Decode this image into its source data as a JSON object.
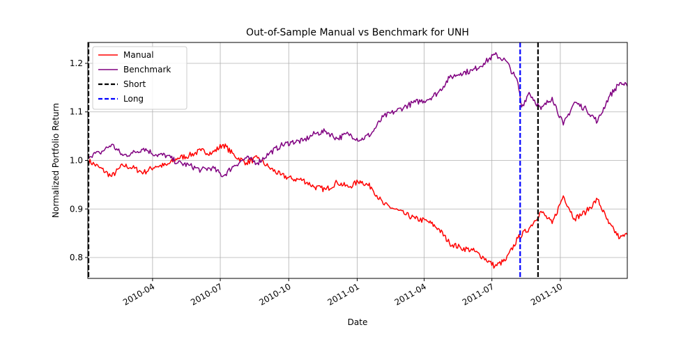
{
  "chart_data": {
    "type": "line",
    "title": "Out-of-Sample Manual vs Benchmark for UNH",
    "xlabel": "Date",
    "ylabel": "Normalized Portfolio Return",
    "x_range": [
      "2010-01-04",
      "2011-12-30"
    ],
    "ylim": [
      0.757,
      1.243
    ],
    "x_ticks": [
      "2010-04",
      "2010-07",
      "2010-10",
      "2011-01",
      "2011-04",
      "2011-07",
      "2011-10"
    ],
    "y_ticks": [
      0.8,
      0.9,
      1.0,
      1.1,
      1.2
    ],
    "grid": true,
    "legend_position": "top-left",
    "series": [
      {
        "name": "Manual",
        "color": "#ff0000",
        "points": [
          [
            "2010-01-04",
            1.0
          ],
          [
            "2010-01-20",
            0.985
          ],
          [
            "2010-02-05",
            0.967
          ],
          [
            "2010-02-20",
            0.99
          ],
          [
            "2010-03-05",
            0.985
          ],
          [
            "2010-03-20",
            0.975
          ],
          [
            "2010-04-05",
            0.988
          ],
          [
            "2010-04-20",
            0.99
          ],
          [
            "2010-05-05",
            1.005
          ],
          [
            "2010-05-20",
            1.01
          ],
          [
            "2010-06-05",
            1.02
          ],
          [
            "2010-06-20",
            1.015
          ],
          [
            "2010-07-05",
            1.033
          ],
          [
            "2010-07-20",
            1.01
          ],
          [
            "2010-08-05",
            0.995
          ],
          [
            "2010-08-20",
            1.005
          ],
          [
            "2010-09-05",
            0.985
          ],
          [
            "2010-09-20",
            0.97
          ],
          [
            "2010-10-05",
            0.962
          ],
          [
            "2010-10-20",
            0.96
          ],
          [
            "2010-11-05",
            0.945
          ],
          [
            "2010-11-20",
            0.94
          ],
          [
            "2010-12-05",
            0.955
          ],
          [
            "2010-12-20",
            0.945
          ],
          [
            "2011-01-05",
            0.958
          ],
          [
            "2011-01-20",
            0.945
          ],
          [
            "2011-02-05",
            0.91
          ],
          [
            "2011-02-20",
            0.9
          ],
          [
            "2011-03-05",
            0.89
          ],
          [
            "2011-03-20",
            0.88
          ],
          [
            "2011-04-05",
            0.875
          ],
          [
            "2011-04-20",
            0.86
          ],
          [
            "2011-05-05",
            0.83
          ],
          [
            "2011-05-20",
            0.82
          ],
          [
            "2011-06-05",
            0.815
          ],
          [
            "2011-06-20",
            0.8
          ],
          [
            "2011-07-05",
            0.782
          ],
          [
            "2011-07-20",
            0.795
          ],
          [
            "2011-08-05",
            0.84
          ],
          [
            "2011-08-20",
            0.86
          ],
          [
            "2011-09-05",
            0.895
          ],
          [
            "2011-09-20",
            0.87
          ],
          [
            "2011-10-05",
            0.927
          ],
          [
            "2011-10-20",
            0.88
          ],
          [
            "2011-11-05",
            0.895
          ],
          [
            "2011-11-20",
            0.92
          ],
          [
            "2011-12-05",
            0.87
          ],
          [
            "2011-12-20",
            0.84
          ],
          [
            "2011-12-30",
            0.847
          ]
        ]
      },
      {
        "name": "Benchmark",
        "color": "#800080",
        "points": [
          [
            "2010-01-04",
            1.01
          ],
          [
            "2010-01-20",
            1.015
          ],
          [
            "2010-02-05",
            1.033
          ],
          [
            "2010-02-20",
            1.01
          ],
          [
            "2010-03-05",
            1.015
          ],
          [
            "2010-03-20",
            1.025
          ],
          [
            "2010-04-05",
            1.012
          ],
          [
            "2010-04-20",
            1.01
          ],
          [
            "2010-05-05",
            0.995
          ],
          [
            "2010-05-20",
            0.99
          ],
          [
            "2010-06-05",
            0.98
          ],
          [
            "2010-06-20",
            0.985
          ],
          [
            "2010-07-05",
            0.968
          ],
          [
            "2010-07-20",
            0.99
          ],
          [
            "2010-08-05",
            1.005
          ],
          [
            "2010-08-20",
            0.995
          ],
          [
            "2010-09-05",
            1.015
          ],
          [
            "2010-09-20",
            1.03
          ],
          [
            "2010-10-05",
            1.038
          ],
          [
            "2010-10-20",
            1.04
          ],
          [
            "2010-11-05",
            1.055
          ],
          [
            "2010-11-20",
            1.06
          ],
          [
            "2010-12-05",
            1.045
          ],
          [
            "2010-12-20",
            1.055
          ],
          [
            "2011-01-05",
            1.042
          ],
          [
            "2011-01-20",
            1.055
          ],
          [
            "2011-02-05",
            1.09
          ],
          [
            "2011-02-20",
            1.1
          ],
          [
            "2011-03-05",
            1.11
          ],
          [
            "2011-03-20",
            1.12
          ],
          [
            "2011-04-05",
            1.125
          ],
          [
            "2011-04-20",
            1.14
          ],
          [
            "2011-05-05",
            1.17
          ],
          [
            "2011-05-20",
            1.18
          ],
          [
            "2011-06-05",
            1.185
          ],
          [
            "2011-06-20",
            1.2
          ],
          [
            "2011-07-05",
            1.218
          ],
          [
            "2011-07-20",
            1.205
          ],
          [
            "2011-08-05",
            1.16
          ],
          [
            "2011-08-10",
            1.11
          ],
          [
            "2011-08-20",
            1.14
          ],
          [
            "2011-09-05",
            1.105
          ],
          [
            "2011-09-20",
            1.13
          ],
          [
            "2011-10-05",
            1.073
          ],
          [
            "2011-10-20",
            1.12
          ],
          [
            "2011-11-05",
            1.105
          ],
          [
            "2011-11-20",
            1.08
          ],
          [
            "2011-12-05",
            1.13
          ],
          [
            "2011-12-20",
            1.16
          ],
          [
            "2011-12-30",
            1.153
          ]
        ]
      }
    ],
    "vlines": [
      {
        "name": "Short",
        "color": "#000000",
        "dates": [
          "2010-01-04",
          "2011-09-01"
        ]
      },
      {
        "name": "Long",
        "color": "#0000ff",
        "dates": [
          "2011-08-08"
        ]
      }
    ]
  }
}
